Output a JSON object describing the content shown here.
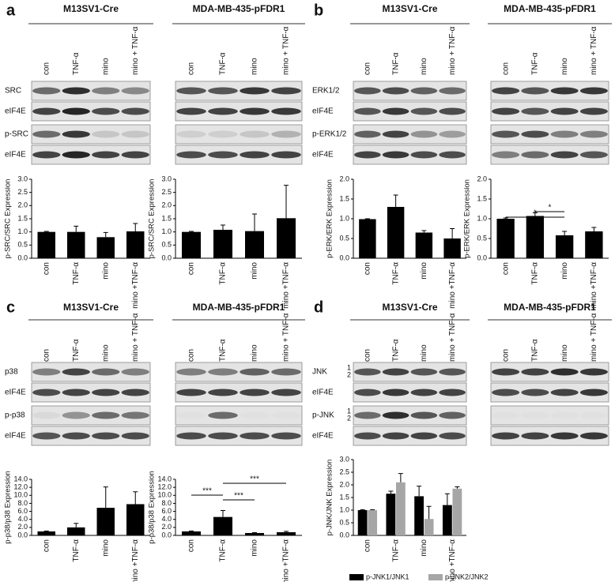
{
  "panels": [
    {
      "letter": "a",
      "groups": [
        {
          "title": "M13SV1-Cre",
          "lanes": [
            "con",
            "TNF-α",
            "mino",
            "mino + TNF-α"
          ],
          "rows": [
            "SRC",
            "eIF4E",
            "p-SRC",
            "eIF4E"
          ]
        },
        {
          "title": "MDA-MB-435-pFDR1",
          "lanes": [
            "con",
            "TNF-α",
            "mino",
            "mino + TNF-α"
          ]
        }
      ]
    },
    {
      "letter": "b",
      "groups": [
        {
          "title": "M13SV1-Cre",
          "lanes": [
            "con",
            "TNF-α",
            "mino",
            "mino + TNF-α"
          ],
          "rows": [
            "ERK1/2",
            "eIF4E",
            "p-ERK1/2",
            "eIF4E"
          ]
        },
        {
          "title": "MDA-MB-435-pFDR1",
          "lanes": [
            "con",
            "TNF-α",
            "mino",
            "mino + TNF-α"
          ]
        }
      ]
    },
    {
      "letter": "c",
      "groups": [
        {
          "title": "M13SV1-Cre",
          "lanes": [
            "con",
            "TNF-α",
            "mino",
            "mino + TNF-α"
          ],
          "rows": [
            "p38",
            "eIF4E",
            "p-p38",
            "eIF4E"
          ]
        },
        {
          "title": "MDA-MB-435-pFDR1",
          "lanes": [
            "con",
            "TNF-α",
            "mino",
            "mino + TNF-α"
          ]
        }
      ]
    },
    {
      "letter": "d",
      "groups": [
        {
          "title": "M13SV1-Cre",
          "lanes": [
            "con",
            "TNF-α",
            "mino",
            "mino + TNF-α"
          ],
          "rows": [
            "JNK",
            "eIF4E",
            "p-JNK",
            "eIF4E"
          ],
          "subbands": [
            "1",
            "2"
          ]
        },
        {
          "title": "MDA-MB-435-pFDR1",
          "lanes": [
            "con",
            "TNF-α",
            "mino",
            "mino + TNF-α"
          ]
        }
      ]
    }
  ],
  "chart_data": [
    {
      "type": "bar",
      "ylabel": "p-SRC/SRC Expression",
      "categories": [
        "con",
        "TNF-α",
        "mino",
        "mino +TNF-α"
      ],
      "values": [
        1.0,
        1.0,
        0.8,
        1.02
      ],
      "errors": [
        0.02,
        0.22,
        0.18,
        0.3
      ],
      "color": "#000000",
      "ylim": [
        0,
        3
      ],
      "yticks": [
        {
          "value": 0,
          "label": "0.0"
        },
        0.5,
        {
          "value": 1,
          "label": "1.0"
        },
        1.5,
        {
          "value": 2,
          "label": "2.0"
        },
        2.5,
        {
          "value": 3,
          "label": "3.0"
        }
      ]
    },
    {
      "type": "bar",
      "ylabel": "p-SRC/SRC Expression",
      "categories": [
        "con",
        "TNF-α",
        "mino",
        "mino +TNF-α"
      ],
      "values": [
        1.0,
        1.08,
        1.03,
        1.52
      ],
      "errors": [
        0.02,
        0.18,
        0.65,
        1.25
      ],
      "color": "#000000",
      "ylim": [
        0,
        3
      ],
      "yticks": [
        {
          "value": 0,
          "label": "0.0"
        },
        0.5,
        {
          "value": 1,
          "label": "1.0"
        },
        1.5,
        {
          "value": 2,
          "label": "2.0"
        },
        2.5,
        {
          "value": 3,
          "label": "3.0"
        }
      ]
    },
    {
      "type": "bar",
      "ylabel": "p-ERK/ERK Expression",
      "categories": [
        "con",
        "TNF-α",
        "mino",
        "mino +TNF-α"
      ],
      "values": [
        0.99,
        1.3,
        0.65,
        0.5
      ],
      "errors": [
        0.01,
        0.3,
        0.05,
        0.25
      ],
      "color": "#000000",
      "ylim": [
        0,
        2
      ],
      "yticks": [
        {
          "value": 0,
          "label": "0.0"
        },
        0.5,
        {
          "value": 1,
          "label": "1.0"
        },
        1.5,
        {
          "value": 2,
          "label": "2.0"
        }
      ]
    },
    {
      "type": "bar",
      "ylabel": "p-ERK/ERK Expression",
      "categories": [
        "con",
        "TNF-α",
        "mino",
        "mino +TNF-α"
      ],
      "values": [
        1.0,
        1.07,
        0.58,
        0.68
      ],
      "errors": [
        0.02,
        0.08,
        0.1,
        0.1
      ],
      "color": "#000000",
      "ylim": [
        0,
        2
      ],
      "yticks": [
        {
          "value": 0,
          "label": "0.0"
        },
        0.5,
        {
          "value": 1,
          "label": "1.0"
        },
        1.5,
        {
          "value": 2,
          "label": "2.0"
        }
      ],
      "annotations": [
        "*",
        "*"
      ]
    },
    {
      "type": "bar",
      "ylabel": "p-p38/p38 Expression",
      "categories": [
        "con",
        "TNF-α",
        "mino",
        "mino +TNF-α"
      ],
      "values": [
        1.0,
        2.0,
        6.9,
        7.8
      ],
      "errors": [
        0.1,
        1.0,
        5.2,
        3.1
      ],
      "color": "#000000",
      "ylim": [
        0,
        14
      ],
      "yticks": [
        {
          "value": 0,
          "label": "0.0"
        },
        {
          "value": 2,
          "label": "2.0"
        },
        {
          "value": 4,
          "label": "4.0"
        },
        {
          "value": 6,
          "label": "6.0"
        },
        {
          "value": 8,
          "label": "8.0"
        },
        {
          "value": 10,
          "label": "10.0"
        },
        {
          "value": 12,
          "label": "12.0"
        },
        {
          "value": 14,
          "label": "14.0"
        }
      ]
    },
    {
      "type": "bar",
      "ylabel": "p-p38/p38 Expression",
      "categories": [
        "con",
        "TNF-α",
        "mino",
        "mino +TNF-α"
      ],
      "values": [
        1.0,
        4.6,
        0.6,
        0.8
      ],
      "errors": [
        0.1,
        1.6,
        0.1,
        0.2
      ],
      "color": "#000000",
      "ylim": [
        0,
        14
      ],
      "yticks": [
        {
          "value": 0,
          "label": "0.0"
        },
        {
          "value": 2,
          "label": "2.0"
        },
        {
          "value": 4,
          "label": "4.0"
        },
        {
          "value": 6,
          "label": "6.0"
        },
        {
          "value": 8,
          "label": "8.0"
        },
        {
          "value": 10,
          "label": "10.0"
        },
        {
          "value": 12,
          "label": "12.0"
        },
        {
          "value": 14,
          "label": "14.0"
        }
      ],
      "annotations": [
        "***",
        "***",
        "***"
      ]
    },
    {
      "type": "grouped-bar",
      "ylabel": "p-JNK/JNK Expression",
      "categories": [
        "con",
        "TNF-α",
        "mino",
        "mino +TNF-α"
      ],
      "series": [
        {
          "name": "p-JNK1/JNK1",
          "color": "#000000",
          "values": [
            1.0,
            1.65,
            1.55,
            1.2
          ],
          "errors": [
            0.02,
            0.1,
            0.4,
            0.45
          ]
        },
        {
          "name": "p-JNK2/JNK2",
          "color": "#a6a6a6",
          "values": [
            1.0,
            2.1,
            0.65,
            1.85
          ],
          "errors": [
            0.02,
            0.35,
            0.5,
            0.07
          ]
        }
      ],
      "ylim": [
        0,
        3
      ],
      "yticks": [
        {
          "value": 0,
          "label": "0.0"
        },
        0.5,
        {
          "value": 1,
          "label": "1.0"
        },
        1.5,
        {
          "value": 2,
          "label": "2.0"
        },
        2.5,
        {
          "value": 3,
          "label": "3.0"
        }
      ]
    }
  ]
}
